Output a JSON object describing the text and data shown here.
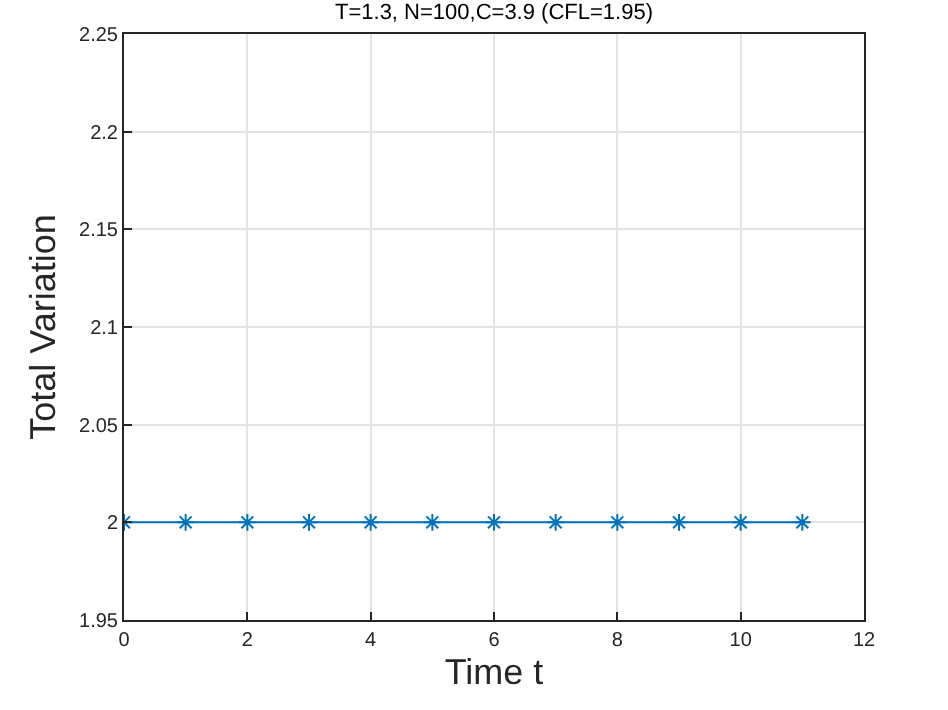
{
  "chart_data": {
    "type": "line",
    "title": "T=1.3, N=100,C=3.9 (CFL=1.95)",
    "xlabel": "Time t",
    "ylabel": "Total Variation",
    "x": [
      0,
      1,
      2,
      3,
      4,
      5,
      6,
      7,
      8,
      9,
      10,
      11
    ],
    "series": [
      {
        "color": "#0072bd",
        "values": [
          2,
          2,
          2,
          2,
          2,
          2,
          2,
          2,
          2,
          2,
          2,
          2
        ]
      }
    ],
    "xlim": [
      0,
      12
    ],
    "xticks": [
      0,
      2,
      4,
      6,
      8,
      10,
      12
    ],
    "ylim": [
      1.95,
      2.25
    ],
    "yticks": [
      1.95,
      2,
      2.05,
      2.1,
      2.15,
      2.2,
      2.25
    ],
    "grid": true,
    "marker": "cross",
    "line_style": "solid"
  }
}
